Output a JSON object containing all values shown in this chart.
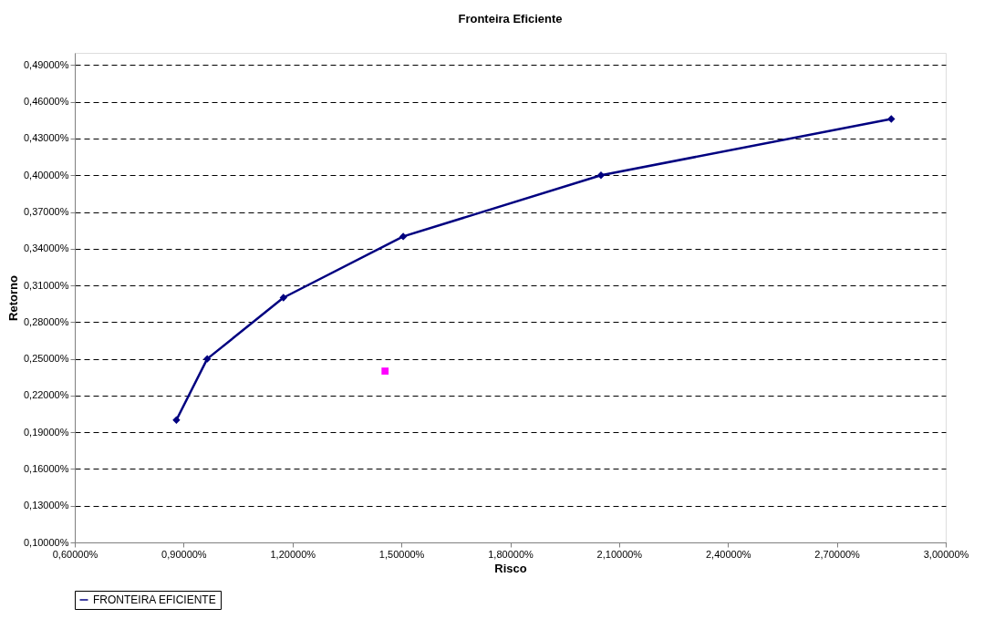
{
  "chart_data": {
    "type": "line",
    "title": "Fronteira Eficiente",
    "xlabel": "Risco",
    "ylabel": "Retorno",
    "series": [
      {
        "name": "FRONTEIRA EFICIENTE",
        "color": "#000080",
        "marker": "diamond",
        "x": [
          0.88,
          0.965,
          1.175,
          1.505,
          2.05,
          2.85
        ],
        "values": [
          0.2,
          0.25,
          0.3,
          0.35,
          0.4,
          0.446
        ]
      },
      {
        "type": "scatter",
        "color": "#ff00ff",
        "marker": "square",
        "x": [
          1.455
        ],
        "values": [
          0.24
        ]
      }
    ],
    "xlim": [
      0.6,
      3.0
    ],
    "xticks": [
      {
        "value": 0.6,
        "label": "0,60000%"
      },
      {
        "value": 0.9,
        "label": "0,90000%"
      },
      {
        "value": 1.2,
        "label": "1,20000%"
      },
      {
        "value": 1.5,
        "label": "1,50000%"
      },
      {
        "value": 1.8,
        "label": "1,80000%"
      },
      {
        "value": 2.1,
        "label": "2,10000%"
      },
      {
        "value": 2.4,
        "label": "2,40000%"
      },
      {
        "value": 2.7,
        "label": "2,70000%"
      },
      {
        "value": 3.0,
        "label": "3,00000%"
      }
    ],
    "ylim": [
      0.1,
      0.5
    ],
    "yticks": [
      {
        "value": 0.1,
        "label": "0,10000%"
      },
      {
        "value": 0.13,
        "label": "0,13000%"
      },
      {
        "value": 0.16,
        "label": "0,16000%"
      },
      {
        "value": 0.19,
        "label": "0,19000%"
      },
      {
        "value": 0.22,
        "label": "0,22000%"
      },
      {
        "value": 0.25,
        "label": "0,25000%"
      },
      {
        "value": 0.28,
        "label": "0,28000%"
      },
      {
        "value": 0.31,
        "label": "0,31000%"
      },
      {
        "value": 0.34,
        "label": "0,34000%"
      },
      {
        "value": 0.37,
        "label": "0,37000%"
      },
      {
        "value": 0.4,
        "label": "0,40000%"
      },
      {
        "value": 0.43,
        "label": "0,43000%"
      },
      {
        "value": 0.46,
        "label": "0,46000%"
      },
      {
        "value": 0.49,
        "label": "0,49000%"
      }
    ],
    "grid": "y",
    "legend": "bottom"
  }
}
